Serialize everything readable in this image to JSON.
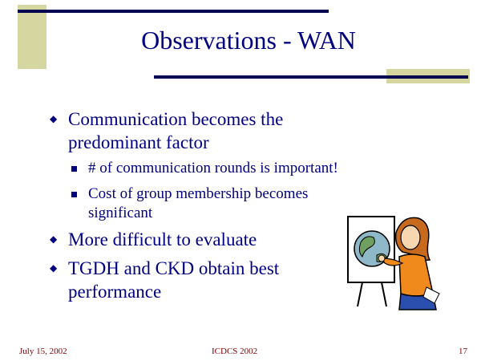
{
  "slide": {
    "title": "Observations - WAN",
    "bullets": [
      "Communication becomes the predominant factor",
      "More difficult to evaluate",
      "TGDH and CKD obtain best performance"
    ],
    "sub_bullets": [
      " # of communication rounds is important!",
      "Cost of group membership becomes significant"
    ]
  },
  "footer": {
    "date": "July 15, 2002",
    "center": "ICDCS 2002",
    "page": "17"
  },
  "colors": {
    "text": "#000080",
    "accent_block": "#D6D6A0",
    "rule": "#000050",
    "footer": "#800000"
  },
  "clipart": "teacher-at-globe-chart"
}
